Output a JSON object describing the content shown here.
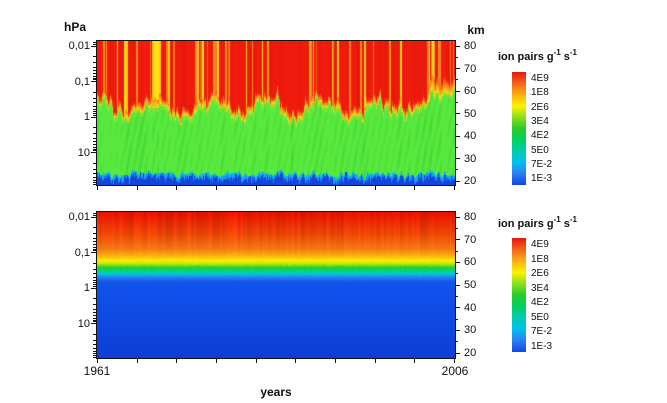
{
  "figure": {
    "background": "#ffffff",
    "x_axis": {
      "label": "years",
      "first_tick_label": "1961",
      "last_tick_label": "2006"
    },
    "pressure_axis": {
      "label": "hPa",
      "tick_labels": [
        "0,01",
        "0,1",
        "1",
        "10"
      ]
    },
    "altitude_axis": {
      "label": "km",
      "tick_labels": [
        "80",
        "70",
        "60",
        "50",
        "40",
        "30",
        "20"
      ]
    },
    "legend": {
      "title_prefix": "ion pairs g",
      "title_sup1": "-1",
      "title_mid": "s",
      "title_sup2": "-1",
      "tick_labels": [
        "4E9",
        "1E8",
        "2E6",
        "3E4",
        "4E2",
        "5E0",
        "7E-2",
        "1E-3"
      ],
      "colors_top_to_bottom": [
        "#e6180f",
        "#f2641c",
        "#fcae14",
        "#fff200",
        "#8adf20",
        "#28cc28",
        "#00d060",
        "#00ccb0",
        "#00c0f0",
        "#2e7df0",
        "#0d47e8"
      ]
    }
  },
  "chart_data": [
    {
      "type": "heatmap",
      "position": "top",
      "x_label": "years",
      "x_range": [
        1961,
        2006
      ],
      "x_tick_step_years": 5,
      "y_pressure_hPa": {
        "scale": "log",
        "major_ticks": [
          0.01,
          0.1,
          1,
          10
        ]
      },
      "y_altitude_km": {
        "ticks": [
          80,
          70,
          60,
          50,
          40,
          30,
          20
        ],
        "panel_range": [
          18,
          82
        ]
      },
      "colorbar_title": "ion pairs g-1 s-1",
      "colorbar_tick_values": [
        "4E9",
        "1E8",
        "2E6",
        "3E4",
        "4E2",
        "5E0",
        "7E-2",
        "1E-3"
      ],
      "description": "Highly time-variable ionization rate: red (high, ~1E8-4E9) above ~52 km with dense vertical orange/yellow streak events every few months, wavy yellow transition ribbon near 50-55 km, spiky green layer (~3E4-4E2) from ~24 to ~52 km, ragged cyan/blue (<5E0) below ~24 km; green/yellow reaches ~60 km near 2002-2006; broad yellow event band near 1968",
      "structure": {
        "red_green_boundary_km_mean": 51.5,
        "red_green_boundary_km_noise": 6,
        "green_blue_boundary_km_mean": 23.2,
        "streak_probability": 0.1,
        "major_event_x_frac": 0.165,
        "major_event_width_frac": 0.025,
        "right_anomaly_start_frac": 0.92,
        "seed": 42,
        "palette": {
          "red": "#ed1a0d",
          "orange": "#f57e20",
          "yellow": "#ffe414",
          "green_dark": "#17b517",
          "green_light": "#58e83e",
          "cyan": "#00c6ec",
          "light_blue": "#2e7df0",
          "blue": "#1547e0",
          "deep_blue": "#0c3cc8"
        }
      }
    },
    {
      "type": "heatmap",
      "position": "bottom",
      "x_label": "years",
      "x_range": [
        1961,
        2006
      ],
      "x_tick_step_years": 5,
      "y_pressure_hPa": {
        "scale": "log",
        "major_ticks": [
          0.01,
          0.1,
          1,
          10
        ]
      },
      "y_altitude_km": {
        "ticks": [
          80,
          70,
          60,
          50,
          40,
          30,
          20
        ],
        "panel_range": [
          18,
          82
        ]
      },
      "colorbar_title": "ion pairs g-1 s-1",
      "colorbar_tick_values": [
        "4E9",
        "1E8",
        "2E6",
        "3E4",
        "4E2",
        "5E0",
        "7E-2",
        "1E-3"
      ],
      "description": "Smooth, nearly time-constant ionization decreasing with altitude: red above ~64 km grading through orange, yellow near ~61 km, narrow green band near ~58 km, cyan near ~55 km, uniform blue below ~52 km; faint vertical striping only in the red/orange zone",
      "structure": {
        "gradient_stops_km_color": [
          [
            82,
            "#e81400"
          ],
          [
            72,
            "#ee4c08"
          ],
          [
            66,
            "#f47b16"
          ],
          [
            63,
            "#fbb40e"
          ],
          [
            61,
            "#fdef00"
          ],
          [
            59.5,
            "#b7e714"
          ],
          [
            58,
            "#2ecc26"
          ],
          [
            56.5,
            "#00d77e"
          ],
          [
            55,
            "#00c6e0"
          ],
          [
            53.5,
            "#2b7bf0"
          ],
          [
            51.5,
            "#1353ec"
          ],
          [
            18,
            "#0c3fd6"
          ]
        ],
        "stripe_intensity": 0.24,
        "stripe_fade_km": [
          62,
          74
        ],
        "seed": 7
      }
    }
  ]
}
